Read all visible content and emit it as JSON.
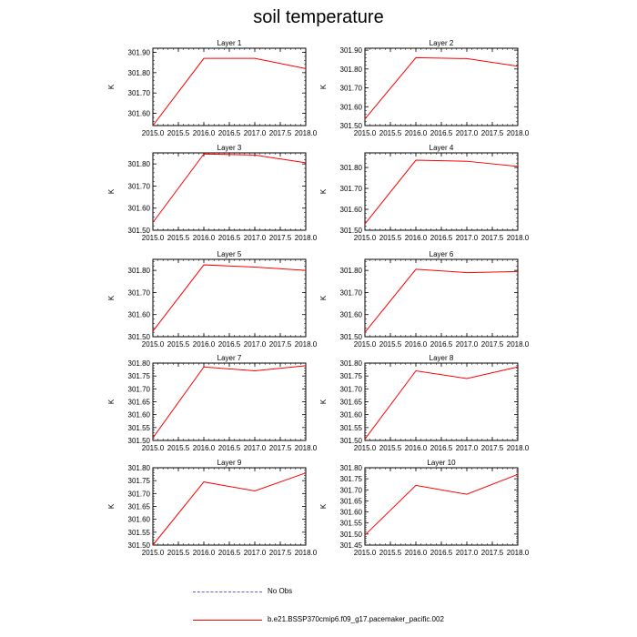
{
  "title": "soil temperature",
  "legend": {
    "items": [
      {
        "label": "No Obs",
        "color": "#6a5acd",
        "style": "dashed"
      },
      {
        "label": "b.e21.BSSP370cmip6.f09_g17.pacemaker_pacific.002",
        "color": "#ff0000",
        "style": "solid"
      }
    ]
  },
  "chart_data": [
    {
      "type": "line",
      "title": "Layer 1",
      "ylabel": "K",
      "xlim": [
        2015.0,
        2018.0
      ],
      "xticks": [
        "2015.0",
        "2015.5",
        "2016.0",
        "2016.5",
        "2017.0",
        "2017.5",
        "2018.0"
      ],
      "ylim": [
        301.54,
        301.92
      ],
      "yticks": [
        "301.60",
        "301.70",
        "301.80",
        "301.90"
      ],
      "series": [
        {
          "color": "#ff0000",
          "x": [
            2015,
            2016,
            2017,
            2018
          ],
          "y": [
            301.54,
            301.87,
            301.87,
            301.82
          ]
        }
      ]
    },
    {
      "type": "line",
      "title": "Layer 2",
      "ylabel": "K",
      "xlim": [
        2015.0,
        2018.0
      ],
      "xticks": [
        "2015.0",
        "2015.5",
        "2016.0",
        "2016.5",
        "2017.0",
        "2017.5",
        "2018.0"
      ],
      "ylim": [
        301.5,
        301.91
      ],
      "yticks": [
        "301.50",
        "301.60",
        "301.70",
        "301.80",
        "301.90"
      ],
      "series": [
        {
          "color": "#ff0000",
          "x": [
            2015,
            2016,
            2017,
            2018
          ],
          "y": [
            301.535,
            301.86,
            301.855,
            301.815
          ]
        }
      ]
    },
    {
      "type": "line",
      "title": "Layer 3",
      "ylabel": "K",
      "xlim": [
        2015.0,
        2018.0
      ],
      "xticks": [
        "2015.0",
        "2015.5",
        "2016.0",
        "2016.5",
        "2017.0",
        "2017.5",
        "2018.0"
      ],
      "ylim": [
        301.5,
        301.85
      ],
      "yticks": [
        "301.50",
        "301.60",
        "301.70",
        "301.80"
      ],
      "series": [
        {
          "color": "#ff0000",
          "x": [
            2015,
            2016,
            2017,
            2018
          ],
          "y": [
            301.535,
            301.845,
            301.84,
            301.805
          ]
        }
      ]
    },
    {
      "type": "line",
      "title": "Layer 4",
      "ylabel": "K",
      "xlim": [
        2015.0,
        2018.0
      ],
      "xticks": [
        "2015.0",
        "2015.5",
        "2016.0",
        "2016.5",
        "2017.0",
        "2017.5",
        "2018.0"
      ],
      "ylim": [
        301.5,
        301.87
      ],
      "yticks": [
        "301.50",
        "301.60",
        "301.70",
        "301.80"
      ],
      "series": [
        {
          "color": "#ff0000",
          "x": [
            2015,
            2016,
            2017,
            2018
          ],
          "y": [
            301.53,
            301.835,
            301.83,
            301.805
          ]
        }
      ]
    },
    {
      "type": "line",
      "title": "Layer 5",
      "ylabel": "K",
      "xlim": [
        2015.0,
        2018.0
      ],
      "xticks": [
        "2015.0",
        "2015.5",
        "2016.0",
        "2016.5",
        "2017.0",
        "2017.5",
        "2018.0"
      ],
      "ylim": [
        301.5,
        301.85
      ],
      "yticks": [
        "301.50",
        "301.60",
        "301.70",
        "301.80"
      ],
      "series": [
        {
          "color": "#ff0000",
          "x": [
            2015,
            2016,
            2017,
            2018
          ],
          "y": [
            301.525,
            301.825,
            301.815,
            301.8
          ]
        }
      ]
    },
    {
      "type": "line",
      "title": "Layer 6",
      "ylabel": "K",
      "xlim": [
        2015.0,
        2018.0
      ],
      "xticks": [
        "2015.0",
        "2015.5",
        "2016.0",
        "2016.5",
        "2017.0",
        "2017.5",
        "2018.0"
      ],
      "ylim": [
        301.5,
        301.85
      ],
      "yticks": [
        "301.50",
        "301.60",
        "301.70",
        "301.80"
      ],
      "series": [
        {
          "color": "#ff0000",
          "x": [
            2015,
            2016,
            2017,
            2018
          ],
          "y": [
            301.52,
            301.805,
            301.79,
            301.795
          ]
        }
      ]
    },
    {
      "type": "line",
      "title": "Layer 7",
      "ylabel": "K",
      "xlim": [
        2015.0,
        2018.0
      ],
      "xticks": [
        "2015.0",
        "2015.5",
        "2016.0",
        "2016.5",
        "2017.0",
        "2017.5",
        "2018.0"
      ],
      "ylim": [
        301.5,
        301.8
      ],
      "yticks": [
        "301.50",
        "301.55",
        "301.60",
        "301.65",
        "301.70",
        "301.75",
        "301.80"
      ],
      "series": [
        {
          "color": "#ff0000",
          "x": [
            2015,
            2016,
            2017,
            2018
          ],
          "y": [
            301.51,
            301.785,
            301.77,
            301.79
          ]
        }
      ]
    },
    {
      "type": "line",
      "title": "Layer 8",
      "ylabel": "K",
      "xlim": [
        2015.0,
        2018.0
      ],
      "xticks": [
        "2015.0",
        "2015.5",
        "2016.0",
        "2016.5",
        "2017.0",
        "2017.5",
        "2018.0"
      ],
      "ylim": [
        301.5,
        301.8
      ],
      "yticks": [
        "301.50",
        "301.55",
        "301.60",
        "301.65",
        "301.70",
        "301.75",
        "301.80"
      ],
      "series": [
        {
          "color": "#ff0000",
          "x": [
            2015,
            2016,
            2017,
            2018
          ],
          "y": [
            301.505,
            301.77,
            301.74,
            301.785
          ]
        }
      ]
    },
    {
      "type": "line",
      "title": "Layer 9",
      "ylabel": "K",
      "xlim": [
        2015.0,
        2018.0
      ],
      "xticks": [
        "2015.0",
        "2015.5",
        "2016.0",
        "2016.5",
        "2017.0",
        "2017.5",
        "2018.0"
      ],
      "ylim": [
        301.5,
        301.8
      ],
      "yticks": [
        "301.50",
        "301.55",
        "301.60",
        "301.65",
        "301.70",
        "301.75",
        "301.80"
      ],
      "series": [
        {
          "color": "#ff0000",
          "x": [
            2015,
            2016,
            2017,
            2018
          ],
          "y": [
            301.5,
            301.745,
            301.71,
            301.78
          ]
        }
      ]
    },
    {
      "type": "line",
      "title": "Layer 10",
      "ylabel": "K",
      "xlim": [
        2015.0,
        2018.0
      ],
      "xticks": [
        "2015.0",
        "2015.5",
        "2016.0",
        "2016.5",
        "2017.0",
        "2017.5",
        "2018.0"
      ],
      "ylim": [
        301.45,
        301.8
      ],
      "yticks": [
        "301.45",
        "301.50",
        "301.55",
        "301.60",
        "301.65",
        "301.70",
        "301.75",
        "301.80"
      ],
      "series": [
        {
          "color": "#ff0000",
          "x": [
            2015,
            2016,
            2017,
            2018
          ],
          "y": [
            301.495,
            301.72,
            301.68,
            301.77
          ]
        }
      ]
    }
  ]
}
